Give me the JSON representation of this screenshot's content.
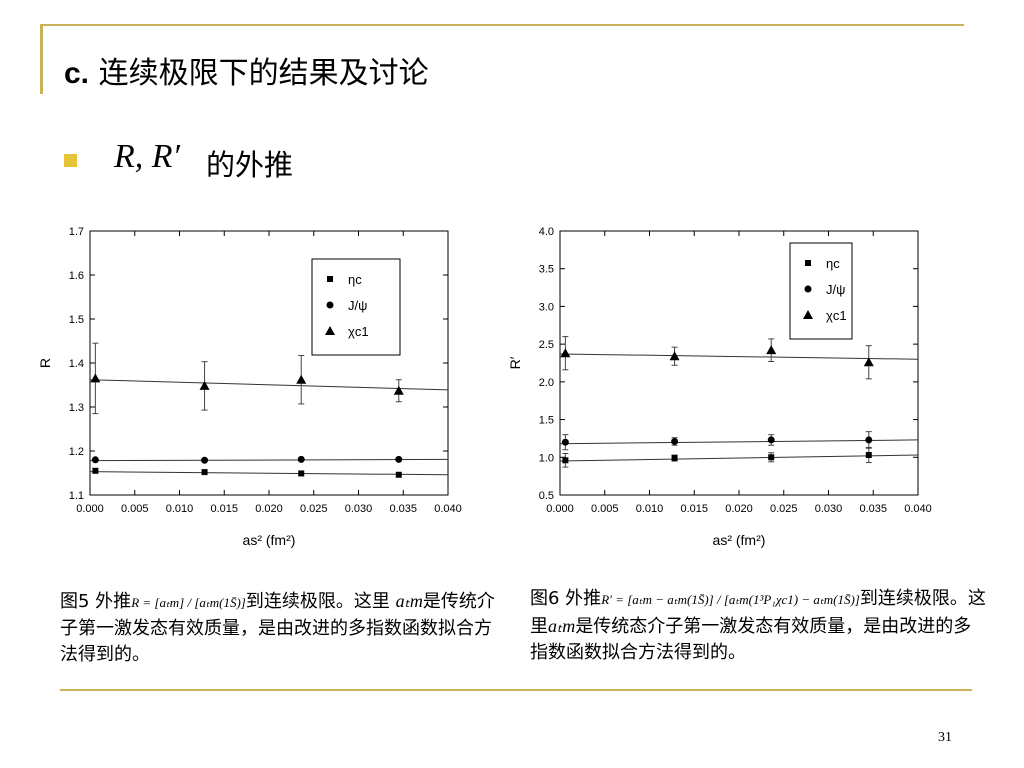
{
  "slide": {
    "title_prefix": "c.",
    "title_text": "连续极限下的结果及讨论",
    "bullet_expr": "R, R′",
    "bullet_text": "的外推",
    "page_number": "31",
    "accent_color": "#c9b25a",
    "bullet_color": "#e5c43a"
  },
  "captions": {
    "left": {
      "prefix": "图5 外推",
      "formula": "R = [aₜm] / [aₜm(1S̄)]",
      "middle": "到连续极限。这里",
      "var": "aₜm",
      "rest": "是传统介子第一激发态有效质量，是由改进的多指数函数拟合方法得到的。"
    },
    "right": {
      "prefix": "图6 外推",
      "formula": "R′ = [aₜm − aₜm(1S̄)] / [aₜm(1³P₁χc1) − aₜm(1S̄)]",
      "middle": "到连续极限。这里",
      "var": "aₜm",
      "rest": "是传统态介子第一激发态有效质量，是由改进的多指数函数拟合方法得到的。"
    }
  },
  "chart_data": [
    {
      "type": "scatter",
      "ylabel": "R",
      "xlabel": "as² (fm²)",
      "xlim": [
        0.0,
        0.04
      ],
      "ylim": [
        1.1,
        1.7
      ],
      "xticks": [
        "0.000",
        "0.005",
        "0.010",
        "0.015",
        "0.020",
        "0.025",
        "0.030",
        "0.035",
        "0.040"
      ],
      "yticks": [
        "1.1",
        "1.2",
        "1.3",
        "1.4",
        "1.5",
        "1.6",
        "1.7"
      ],
      "legend_position": "top-right",
      "series": [
        {
          "name": "ηc",
          "marker": "square",
          "x": [
            0.0006,
            0.0128,
            0.0236,
            0.0345
          ],
          "y": [
            1.155,
            1.152,
            1.149,
            1.146
          ],
          "err": [
            0,
            0,
            0,
            0
          ],
          "fit": [
            1.153,
            1.146
          ]
        },
        {
          "name": "J/ψ",
          "marker": "circle",
          "x": [
            0.0006,
            0.0128,
            0.0236,
            0.0345
          ],
          "y": [
            1.18,
            1.179,
            1.181,
            1.181
          ],
          "err": [
            0,
            0,
            0,
            0
          ],
          "fit": [
            1.178,
            1.181
          ]
        },
        {
          "name": "χc1",
          "marker": "triangle",
          "x": [
            0.0006,
            0.0128,
            0.0236,
            0.0345
          ],
          "y": [
            1.365,
            1.348,
            1.362,
            1.337
          ],
          "err": [
            0.08,
            0.055,
            0.055,
            0.025
          ],
          "fit": [
            1.362,
            1.339
          ]
        }
      ]
    },
    {
      "type": "scatter",
      "ylabel": "R′",
      "xlabel": "as² (fm²)",
      "xlim": [
        0.0,
        0.04
      ],
      "ylim": [
        0.5,
        4.0
      ],
      "xticks": [
        "0.000",
        "0.005",
        "0.010",
        "0.015",
        "0.020",
        "0.025",
        "0.030",
        "0.035",
        "0.040"
      ],
      "yticks": [
        "0.5",
        "1.0",
        "1.5",
        "2.0",
        "2.5",
        "3.0",
        "3.5",
        "4.0"
      ],
      "legend_position": "top-right",
      "series": [
        {
          "name": "ηc",
          "marker": "square",
          "x": [
            0.0006,
            0.0128,
            0.0236,
            0.0345
          ],
          "y": [
            0.96,
            0.99,
            1.0,
            1.03
          ],
          "err": [
            0.09,
            0.04,
            0.06,
            0.1
          ],
          "fit": [
            0.95,
            1.03
          ]
        },
        {
          "name": "J/ψ",
          "marker": "circle",
          "x": [
            0.0006,
            0.0128,
            0.0236,
            0.0345
          ],
          "y": [
            1.2,
            1.21,
            1.23,
            1.23
          ],
          "err": [
            0.1,
            0.05,
            0.07,
            0.11
          ],
          "fit": [
            1.18,
            1.23
          ]
        },
        {
          "name": "χc1",
          "marker": "triangle",
          "x": [
            0.0006,
            0.0128,
            0.0236,
            0.0345
          ],
          "y": [
            2.38,
            2.34,
            2.42,
            2.26
          ],
          "err": [
            0.22,
            0.12,
            0.15,
            0.22
          ],
          "fit": [
            2.37,
            2.3
          ]
        }
      ]
    }
  ]
}
